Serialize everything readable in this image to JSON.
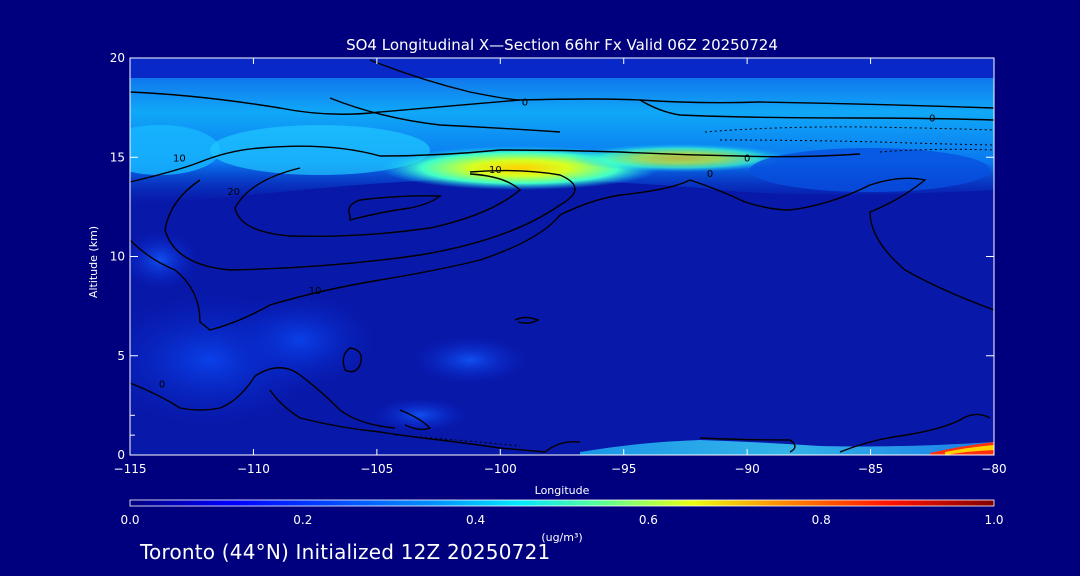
{
  "chart_data": {
    "type": "heatmap",
    "title": "SO4 Longitudinal X—Section 66hr  Fx Valid 06Z 20250724",
    "xlabel": "Longitude",
    "ylabel": "Altitude (km)",
    "xlim": [
      -115,
      -80
    ],
    "ylim": [
      0,
      20
    ],
    "x_ticks": [
      "−115",
      "−110",
      "−105",
      "−100",
      "−95",
      "−90",
      "−85",
      "−80"
    ],
    "x_tick_values": [
      -115,
      -110,
      -105,
      -100,
      -95,
      -90,
      -85,
      -80
    ],
    "y_ticks": [
      "0",
      "5",
      "10",
      "15",
      "20"
    ],
    "y_tick_values": [
      0,
      5,
      10,
      15,
      20
    ],
    "colorbar": {
      "label": "(ug/m³)",
      "range": [
        0.0,
        1.0
      ],
      "ticks": [
        "0.0",
        "0.2",
        "0.4",
        "0.6",
        "0.8",
        "1.0"
      ],
      "tick_values": [
        0.0,
        0.2,
        0.4,
        0.6,
        0.8,
        1.0
      ]
    },
    "concentration_features": [
      {
        "name": "upper layer",
        "lon": [
          -115,
          -80
        ],
        "alt": [
          13.5,
          19.5
        ],
        "value": 0.25
      },
      {
        "name": "upper peak",
        "lon": [
          -103,
          -94
        ],
        "alt": [
          14.2,
          15.0
        ],
        "value": 0.62
      },
      {
        "name": "upper jet",
        "lon": [
          -96,
          -89
        ],
        "alt": [
          14.8,
          15.4
        ],
        "value": 0.5
      },
      {
        "name": "west mid layer",
        "lon": [
          -115,
          -105
        ],
        "alt": [
          2,
          7
        ],
        "value": 0.15
      },
      {
        "name": "surface east",
        "lon": [
          -82,
          -80
        ],
        "alt": [
          0,
          0.6
        ],
        "value": 0.95
      }
    ],
    "contour_labels": [
      {
        "text": "0",
        "lon": -99,
        "alt": 17.8
      },
      {
        "text": "0",
        "lon": -82.5,
        "alt": 17.0
      },
      {
        "text": "0",
        "lon": -90,
        "alt": 15.0
      },
      {
        "text": "0",
        "lon": -91.5,
        "alt": 14.2
      },
      {
        "text": "10",
        "lon": -113,
        "alt": 15.0
      },
      {
        "text": "10",
        "lon": -100.2,
        "alt": 14.4
      },
      {
        "text": "10",
        "lon": -107.5,
        "alt": 8.3
      },
      {
        "text": "20",
        "lon": -110.8,
        "alt": 13.3
      },
      {
        "text": "0",
        "lon": -113.7,
        "alt": 3.6
      }
    ],
    "grid": false,
    "legend": "colorbar-bottom"
  },
  "footer": "Toronto (44°N) Initialized 12Z 20250721",
  "colors": {
    "background": "#00007e",
    "contour": "#000000",
    "text": "#ffffff"
  }
}
